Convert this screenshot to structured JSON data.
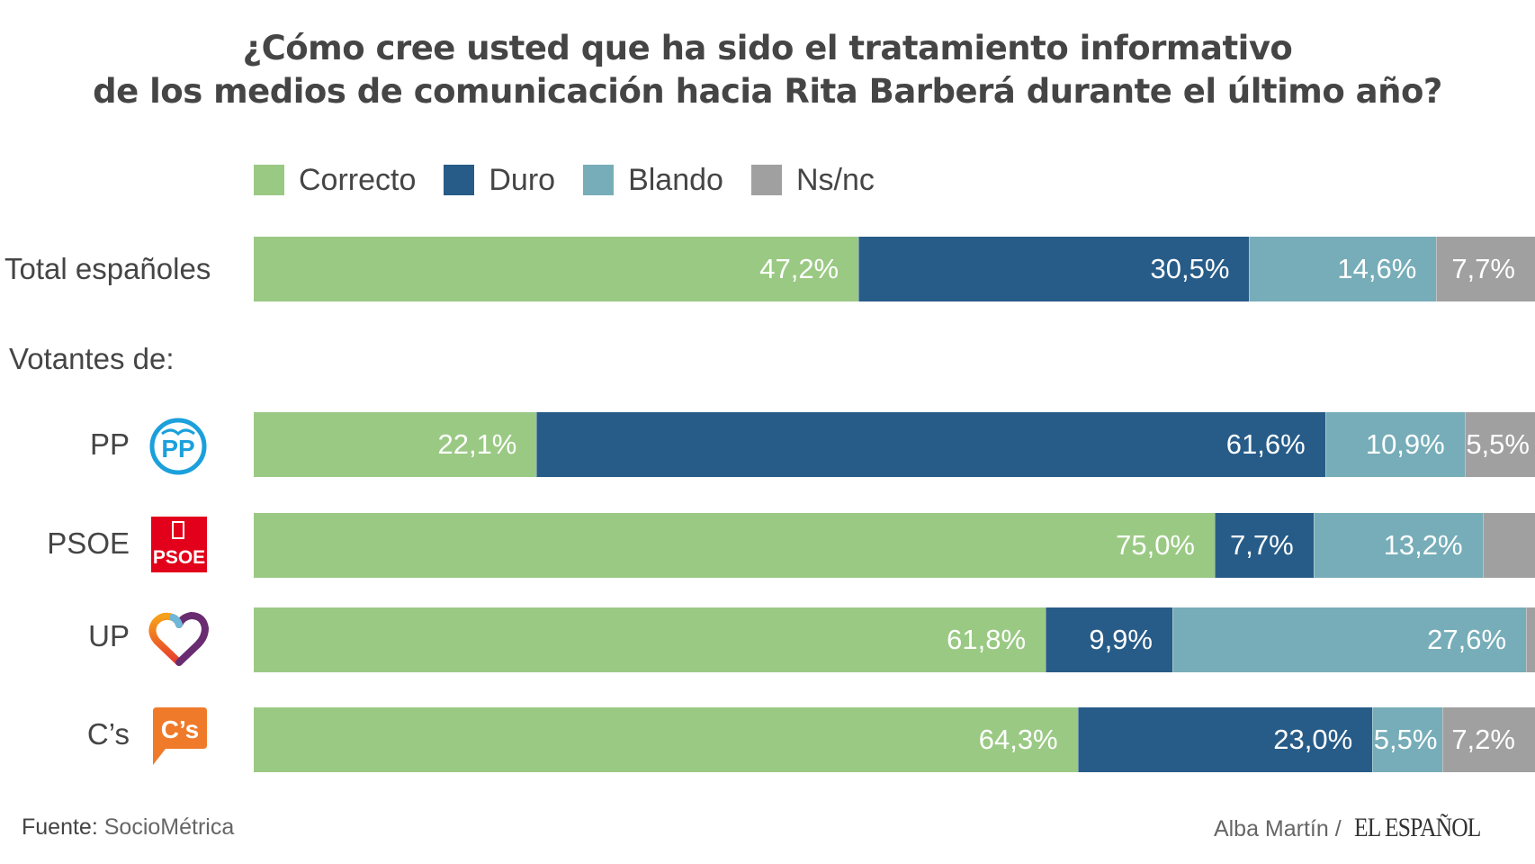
{
  "chart_data": {
    "type": "bar",
    "orientation": "horizontal",
    "stacked": true,
    "title": "¿Cómo cree usted que ha sido el tratamiento informativo de los medios de comunicación hacia Rita Barberá durante el último año?",
    "title_lines": [
      "¿Cómo cree usted que ha sido el tratamiento informativo",
      "de los medios de comunicación hacia Rita Barberá durante el último año?"
    ],
    "xlabel": "",
    "ylabel": "",
    "xlim": [
      0,
      100
    ],
    "grid": false,
    "legend_position": "top",
    "section_label": "Votantes de:",
    "categories": [
      "Total españoles",
      "PP",
      "PSOE",
      "UP",
      "C’s"
    ],
    "series": [
      {
        "name": "Correcto",
        "color": "#9ac984",
        "values": [
          47.2,
          22.1,
          75.0,
          61.8,
          64.3
        ],
        "labels": [
          "47,2%",
          "22,1%",
          "75,0%",
          "61,8%",
          "64,3%"
        ]
      },
      {
        "name": "Duro",
        "color": "#275c88",
        "values": [
          30.5,
          61.6,
          7.7,
          9.9,
          23.0
        ],
        "labels": [
          "30,5%",
          "61,6%",
          "7,7%",
          "9,9%",
          "23,0%"
        ]
      },
      {
        "name": "Blando",
        "color": "#76adb8",
        "values": [
          14.6,
          10.9,
          13.2,
          27.6,
          5.5
        ],
        "labels": [
          "14,6%",
          "10,9%",
          "13,2%",
          "27,6%",
          "5,5%"
        ]
      },
      {
        "name": "Ns/nc",
        "color": "#a0a0a0",
        "values": [
          7.7,
          5.5,
          4.1,
          0.7,
          7.2
        ],
        "labels": [
          "7,7%",
          "5,5%",
          "",
          "",
          "7,2%"
        ]
      }
    ]
  },
  "rows": [
    {
      "label": "Total españoles",
      "logo": null
    },
    {
      "label": "PP",
      "logo": "pp-logo-icon"
    },
    {
      "label": "PSOE",
      "logo": "psoe-logo-icon"
    },
    {
      "label": "UP",
      "logo": "up-heart-logo-icon"
    },
    {
      "label": "C’s",
      "logo": "cs-logo-icon"
    }
  ],
  "logos": {
    "pp_text": "PP",
    "psoe_text": "PSOE",
    "cs_text": "C’s",
    "pp_color": "#1ba0dc",
    "psoe_color": "#e2001a",
    "cs_color": "#ef7a2a"
  },
  "footer": {
    "source_prefix": "Fuente:",
    "source": "SocioMétrica",
    "author": "Alba Martín /",
    "brand": "EL ESPAÑOL"
  }
}
